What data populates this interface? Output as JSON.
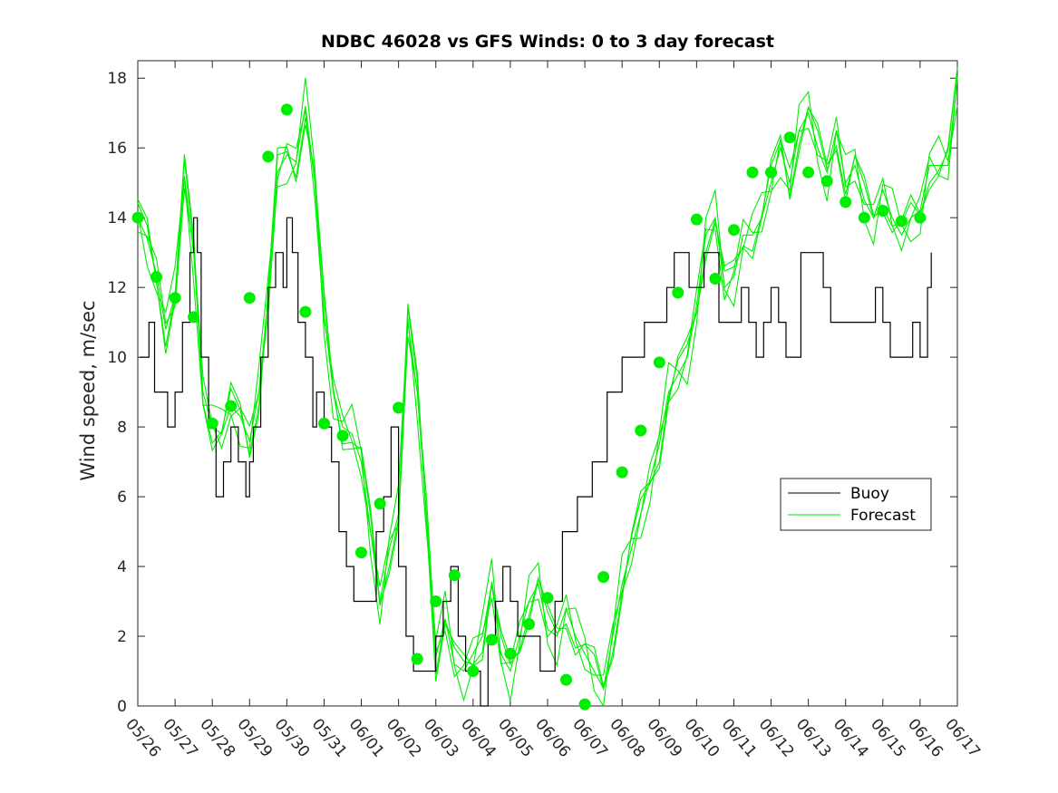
{
  "chart_data": {
    "type": "line",
    "title": "NDBC 46028 vs GFS Winds: 0 to 3 day forecast",
    "xlabel": "",
    "ylabel": "Wind speed, m/sec",
    "xlim": [
      0,
      22
    ],
    "ylim": [
      0,
      18.5
    ],
    "yticks": [
      0,
      2,
      4,
      6,
      8,
      10,
      12,
      14,
      16,
      18
    ],
    "xtick_labels": [
      "05/26",
      "05/27",
      "05/28",
      "05/29",
      "05/30",
      "05/31",
      "06/01",
      "06/02",
      "06/03",
      "06/04",
      "06/05",
      "06/06",
      "06/07",
      "06/08",
      "06/09",
      "06/10",
      "06/11",
      "06/12",
      "06/13",
      "06/14",
      "06/15",
      "06/16",
      "06/17"
    ],
    "legend": {
      "position": "right",
      "entries": [
        "Buoy",
        "Forecast"
      ]
    },
    "colors": {
      "buoy": "#000000",
      "forecast": "#00ee00",
      "axes": "#262626"
    },
    "series": [
      {
        "name": "Buoy",
        "x": [
          0.05,
          0.3,
          0.45,
          0.6,
          0.8,
          1.0,
          1.2,
          1.4,
          1.5,
          1.6,
          1.7,
          1.9,
          2.1,
          2.3,
          2.5,
          2.7,
          2.9,
          3.0,
          3.1,
          3.3,
          3.5,
          3.7,
          3.9,
          4.0,
          4.15,
          4.3,
          4.5,
          4.7,
          4.8,
          5.0,
          5.2,
          5.4,
          5.6,
          5.8,
          6.0,
          6.2,
          6.4,
          6.6,
          6.8,
          7.0,
          7.2,
          7.4,
          7.6,
          7.8,
          8.0,
          8.2,
          8.4,
          8.6,
          8.8,
          9.0,
          9.2,
          9.4,
          9.6,
          9.8,
          10.0,
          10.2,
          10.4,
          10.6,
          10.8,
          11.0,
          11.2,
          11.4,
          11.6,
          11.8,
          12.0,
          12.2,
          12.4,
          12.6,
          12.8,
          13.0,
          13.2,
          13.4,
          13.6,
          13.8,
          14.0,
          14.2,
          14.4,
          14.6,
          14.8,
          15.0,
          15.2,
          15.4,
          15.6,
          15.8,
          16.0,
          16.2,
          16.4,
          16.6,
          16.8,
          17.0,
          17.2,
          17.4,
          17.6,
          17.8,
          18.0,
          18.2,
          18.4,
          18.6,
          18.8,
          19.0,
          19.2,
          19.4,
          19.6,
          19.8,
          20.0,
          20.2,
          20.4,
          20.6,
          20.8,
          21.0,
          21.2,
          21.3
        ],
        "values": [
          10,
          11,
          9,
          9,
          8,
          9,
          11,
          13,
          14,
          13,
          10,
          8,
          6,
          7,
          8,
          7,
          6,
          7,
          8,
          10,
          12,
          13,
          12,
          14,
          13,
          11,
          10,
          8,
          9,
          8,
          7,
          5,
          4,
          3,
          3,
          3,
          5,
          6,
          8,
          4,
          2,
          1,
          1,
          1,
          2,
          3,
          4,
          2,
          1,
          1,
          0,
          2,
          3,
          4,
          3,
          2,
          2,
          2,
          1,
          1,
          3,
          5,
          5,
          6,
          6,
          7,
          7,
          9,
          9,
          10,
          10,
          10,
          11,
          11,
          11,
          12,
          13,
          13,
          12,
          12,
          13,
          13,
          11,
          11,
          11,
          12,
          11,
          10,
          11,
          12,
          11,
          10,
          10,
          13,
          13,
          13,
          12,
          11,
          11,
          11,
          11,
          11,
          11,
          12,
          11,
          10,
          10,
          10,
          11,
          10,
          12,
          13
        ]
      },
      {
        "name": "Forecast",
        "x": [
          0.0,
          0.25,
          0.5,
          0.75,
          1.0,
          1.25,
          1.5,
          1.75,
          2.0,
          2.25,
          2.5,
          2.75,
          3.0,
          3.25,
          3.5,
          3.75,
          4.0,
          4.25,
          4.5,
          4.75,
          5.0,
          5.25,
          5.5,
          5.75,
          6.0,
          6.25,
          6.5,
          6.75,
          7.0,
          7.25,
          7.5,
          7.75,
          8.0,
          8.25,
          8.5,
          8.75,
          9.0,
          9.25,
          9.5,
          9.75,
          10.0,
          10.25,
          10.5,
          10.75,
          11.0,
          11.25,
          11.5,
          11.75,
          12.0,
          12.25,
          12.5,
          12.75,
          13.0,
          13.25,
          13.5,
          13.75,
          14.0,
          14.25,
          14.5,
          14.75,
          15.0,
          15.25,
          15.5,
          15.75,
          16.0,
          16.25,
          16.5,
          16.75,
          17.0,
          17.25,
          17.5,
          17.75,
          18.0,
          18.25,
          18.5,
          18.75,
          19.0,
          19.25,
          19.5,
          19.75,
          20.0,
          20.25,
          20.5,
          20.75,
          21.0,
          21.25,
          21.5,
          21.75,
          22.0
        ],
        "values": [
          14.0,
          13.4,
          12.4,
          10.8,
          11.8,
          15.2,
          13.0,
          9.0,
          8.0,
          7.8,
          8.6,
          8.3,
          7.6,
          9.0,
          11.7,
          15.3,
          15.8,
          15.6,
          17.2,
          15.0,
          11.2,
          9.0,
          8.0,
          7.8,
          7.0,
          5.0,
          3.0,
          4.5,
          5.5,
          11.0,
          9.0,
          5.5,
          1.4,
          2.5,
          1.2,
          1.0,
          1.5,
          2.0,
          3.5,
          1.5,
          1.0,
          2.0,
          3.0,
          3.5,
          2.2,
          2.0,
          2.8,
          2.0,
          1.5,
          1.0,
          0.5,
          2.0,
          3.5,
          4.5,
          5.5,
          6.5,
          7.5,
          9.0,
          9.5,
          10.0,
          11.5,
          13.5,
          14.0,
          12.0,
          12.3,
          13.5,
          13.5,
          14.0,
          15.0,
          16.0,
          15.0,
          16.5,
          17.0,
          16.0,
          15.3,
          16.5,
          15.0,
          15.5,
          14.5,
          14.0,
          14.8,
          14.0,
          13.5,
          14.0,
          14.2,
          15.5,
          15.5,
          15.5,
          18.0
        ]
      }
    ],
    "forecast_markers": {
      "x": [
        0.0,
        0.5,
        1.0,
        1.5,
        2.0,
        2.5,
        3.0,
        3.5,
        4.0,
        4.5,
        5.0,
        5.5,
        6.0,
        6.5,
        7.0,
        7.5,
        8.0,
        8.5,
        9.0,
        9.5,
        10.0,
        10.5,
        11.0,
        11.5,
        12.0,
        12.5,
        13.0,
        13.5,
        14.0,
        14.5,
        15.0,
        15.5,
        16.0,
        16.5,
        17.0,
        17.5,
        18.0,
        18.5,
        19.0,
        19.5,
        20.0,
        20.5,
        21.0
      ],
      "values": [
        14.0,
        12.3,
        11.7,
        11.15,
        8.1,
        8.6,
        11.7,
        15.75,
        17.1,
        11.3,
        8.1,
        7.75,
        4.4,
        5.8,
        8.55,
        1.35,
        3.0,
        3.75,
        1.0,
        1.9,
        1.5,
        2.35,
        3.1,
        0.75,
        0.05,
        3.7,
        6.7,
        7.9,
        9.85,
        11.85,
        13.95,
        12.25,
        13.65,
        15.3,
        15.3,
        16.3,
        15.3,
        15.05,
        14.45,
        14.0,
        14.2,
        13.9,
        14.0
      ]
    }
  }
}
